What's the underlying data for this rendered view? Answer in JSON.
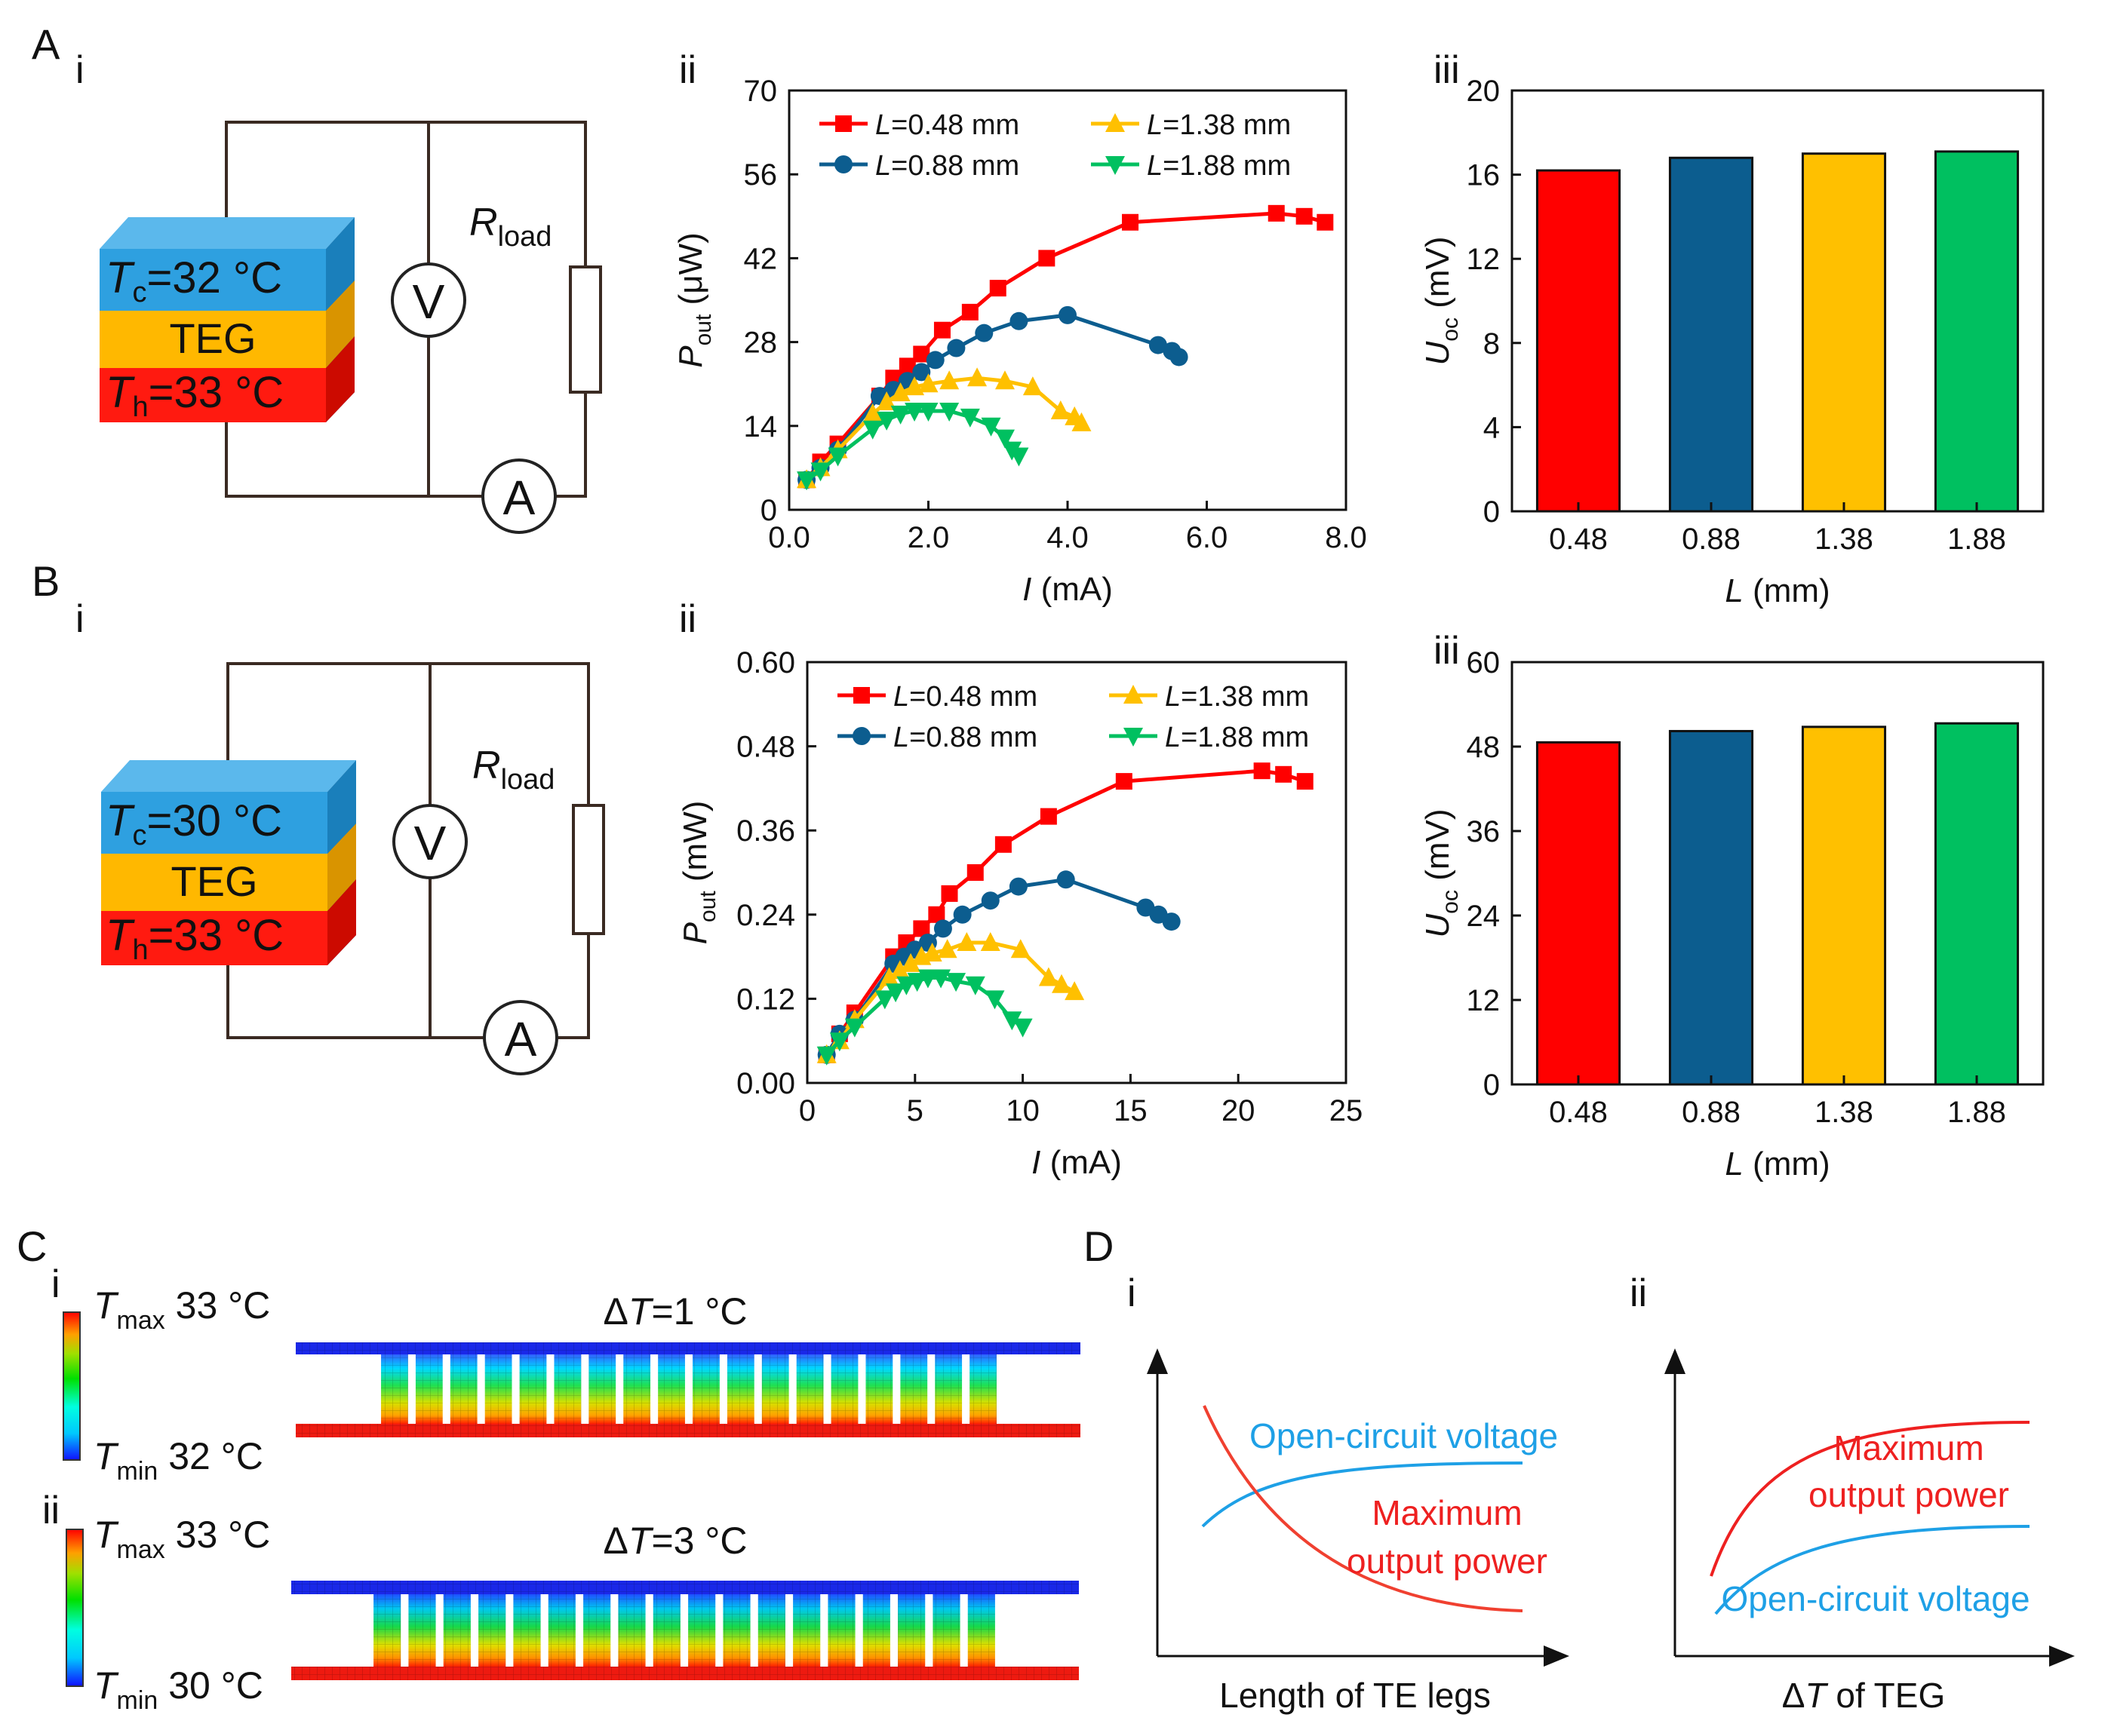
{
  "panel_labels": {
    "A": "A",
    "B": "B",
    "C": "C",
    "D": "D",
    "i": "i",
    "ii": "ii",
    "iii": "iii"
  },
  "panel_A": {
    "circuit": {
      "tc_sym": "T",
      "tc_sub": "c",
      "tc_val": "=32 °C",
      "teg": "TEG",
      "th_sym": "T",
      "th_sub": "h",
      "th_val": "=33 °C",
      "r_sym": "R",
      "r_sub": "load",
      "voltmeter": "V",
      "ammeter": "A"
    }
  },
  "panel_B": {
    "circuit": {
      "tc_sym": "T",
      "tc_sub": "c",
      "tc_val": "=30 °C",
      "teg": "TEG",
      "th_sym": "T",
      "th_sub": "h",
      "th_val": "=33 °C",
      "r_sym": "R",
      "r_sub": "load",
      "voltmeter": "V",
      "ammeter": "A"
    }
  },
  "colors": {
    "red": "#ff0000",
    "blue": "#0c5d8f",
    "yellow": "#ffc000",
    "green": "#00c060",
    "wire": "#3a2a22",
    "cold": "#2ea0e0",
    "teg": "#ffb800",
    "hot": "#ff1a10"
  },
  "chart_data": [
    {
      "id": "A-ii",
      "type": "line",
      "xlabel_sym": "I",
      "xlabel_unit": " (mA)",
      "ylabel_sym": "P",
      "ylabel_sub": "out",
      "ylabel_unit": " (μW)",
      "xlim": [
        0,
        8
      ],
      "ylim": [
        0,
        70
      ],
      "xticks": [
        "0.0",
        "2.0",
        "4.0",
        "6.0",
        "8.0"
      ],
      "xtick_values": [
        0,
        2,
        4,
        6,
        8
      ],
      "yticks": [
        "0",
        "14",
        "28",
        "42",
        "56",
        "70"
      ],
      "ytick_values": [
        0,
        14,
        28,
        42,
        56,
        70
      ],
      "legend": {
        "position": "top-left",
        "prefix": "L",
        "names": [
          "=0.48 mm",
          "=0.88 mm",
          "=1.38 mm",
          "=1.88 mm"
        ]
      },
      "series": [
        {
          "name": "L=0.48 mm",
          "marker": "square",
          "x": [
            0.25,
            0.45,
            0.7,
            1.3,
            1.5,
            1.7,
            1.9,
            2.2,
            2.6,
            3.0,
            3.7,
            4.9,
            7.0,
            7.4,
            7.7
          ],
          "y": [
            5,
            8,
            11,
            19,
            22,
            24,
            26,
            30,
            33,
            37,
            42,
            48,
            49.5,
            49,
            48
          ]
        },
        {
          "name": "L=0.88 mm",
          "marker": "circle",
          "x": [
            0.25,
            0.45,
            0.7,
            1.3,
            1.5,
            1.7,
            1.9,
            2.1,
            2.4,
            2.8,
            3.3,
            4.0,
            5.3,
            5.5,
            5.6
          ],
          "y": [
            5,
            7,
            10,
            19,
            20,
            21.5,
            23,
            25,
            27,
            29.5,
            31.5,
            32.5,
            27.5,
            26.5,
            25.5
          ]
        },
        {
          "name": "L=1.38 mm",
          "marker": "triangle-up",
          "x": [
            0.25,
            0.45,
            0.7,
            1.2,
            1.4,
            1.6,
            1.8,
            2.0,
            2.3,
            2.7,
            3.1,
            3.5,
            3.9,
            4.1,
            4.2
          ],
          "y": [
            5,
            7,
            10,
            16,
            18,
            19.5,
            20.5,
            21,
            21.5,
            22,
            21.5,
            20.5,
            16.5,
            15.5,
            14.5
          ]
        },
        {
          "name": "L=1.88 mm",
          "marker": "triangle-down",
          "x": [
            0.25,
            0.45,
            0.7,
            1.2,
            1.4,
            1.6,
            1.8,
            2.0,
            2.3,
            2.6,
            2.9,
            3.1,
            3.2,
            3.3
          ],
          "y": [
            5,
            6.5,
            9,
            13.5,
            15,
            16,
            16.5,
            16.5,
            16.5,
            15.5,
            14,
            12,
            10,
            9
          ]
        }
      ]
    },
    {
      "id": "A-iii",
      "type": "bar",
      "xlabel_sym": "L",
      "xlabel_unit": " (mm)",
      "ylabel_sym": "U",
      "ylabel_sub": "oc",
      "ylabel_unit": " (mV)",
      "categories": [
        "0.48",
        "0.88",
        "1.38",
        "1.88"
      ],
      "values": [
        16.2,
        16.8,
        17.0,
        17.1
      ],
      "ylim": [
        0,
        20
      ],
      "yticks": [
        "0",
        "4",
        "8",
        "12",
        "16",
        "20"
      ],
      "ytick_values": [
        0,
        4,
        8,
        12,
        16,
        20
      ]
    },
    {
      "id": "B-ii",
      "type": "line",
      "xlabel_sym": "I",
      "xlabel_unit": " (mA)",
      "ylabel_sym": "P",
      "ylabel_sub": "out",
      "ylabel_unit": " (mW)",
      "xlim": [
        0,
        25
      ],
      "ylim": [
        0,
        0.6
      ],
      "xticks": [
        "0",
        "5",
        "10",
        "15",
        "20",
        "25"
      ],
      "xtick_values": [
        0,
        5,
        10,
        15,
        20,
        25
      ],
      "yticks": [
        "0.00",
        "0.12",
        "0.24",
        "0.36",
        "0.48",
        "0.60"
      ],
      "ytick_values": [
        0,
        0.12,
        0.24,
        0.36,
        0.48,
        0.6
      ],
      "legend": {
        "position": "top-left",
        "prefix": "L",
        "names": [
          "=0.48 mm",
          "=0.88 mm",
          "=1.38 mm",
          "=1.88 mm"
        ]
      },
      "series": [
        {
          "name": "L=0.48 mm",
          "marker": "square",
          "x": [
            0.9,
            1.5,
            2.2,
            4.0,
            4.6,
            5.3,
            6.0,
            6.6,
            7.8,
            9.1,
            11.2,
            14.7,
            21.1,
            22.1,
            23.1
          ],
          "y": [
            0.04,
            0.07,
            0.1,
            0.18,
            0.2,
            0.22,
            0.24,
            0.27,
            0.3,
            0.34,
            0.38,
            0.43,
            0.445,
            0.44,
            0.43
          ]
        },
        {
          "name": "L=0.88 mm",
          "marker": "circle",
          "x": [
            0.9,
            1.5,
            2.2,
            4.0,
            4.5,
            5.0,
            5.6,
            6.3,
            7.2,
            8.5,
            9.8,
            12.0,
            15.7,
            16.3,
            16.9
          ],
          "y": [
            0.04,
            0.07,
            0.09,
            0.17,
            0.18,
            0.19,
            0.2,
            0.22,
            0.24,
            0.26,
            0.28,
            0.29,
            0.25,
            0.24,
            0.23
          ]
        },
        {
          "name": "L=1.38 mm",
          "marker": "triangle-up",
          "x": [
            0.9,
            1.5,
            2.2,
            3.8,
            4.3,
            4.8,
            5.3,
            5.8,
            6.5,
            7.4,
            8.5,
            9.9,
            11.2,
            11.8,
            12.4
          ],
          "y": [
            0.04,
            0.06,
            0.09,
            0.15,
            0.16,
            0.17,
            0.18,
            0.185,
            0.19,
            0.2,
            0.2,
            0.19,
            0.15,
            0.14,
            0.13
          ]
        },
        {
          "name": "L=1.88 mm",
          "marker": "triangle-down",
          "x": [
            0.9,
            1.5,
            2.2,
            3.6,
            4.1,
            4.6,
            5.1,
            5.6,
            6.2,
            6.9,
            7.8,
            8.7,
            9.5,
            10.0
          ],
          "y": [
            0.04,
            0.06,
            0.08,
            0.12,
            0.13,
            0.14,
            0.145,
            0.15,
            0.15,
            0.145,
            0.14,
            0.12,
            0.09,
            0.08
          ]
        }
      ]
    },
    {
      "id": "B-iii",
      "type": "bar",
      "xlabel_sym": "L",
      "xlabel_unit": " (mm)",
      "ylabel_sym": "U",
      "ylabel_sub": "oc",
      "ylabel_unit": " (mV)",
      "categories": [
        "0.48",
        "0.88",
        "1.38",
        "1.88"
      ],
      "values": [
        48.6,
        50.2,
        50.8,
        51.3
      ],
      "ylim": [
        0,
        60
      ],
      "yticks": [
        "0",
        "12",
        "24",
        "36",
        "48",
        "60"
      ],
      "ytick_values": [
        0,
        12,
        24,
        36,
        48,
        60
      ]
    }
  ],
  "panel_C": {
    "i": {
      "tmax_sym": "T",
      "tmax_sub": "max",
      "tmax_val": " 33 °C",
      "tmin_sym": "T",
      "tmin_sub": "min",
      "tmin_val": " 32 °C",
      "title_pre": "Δ",
      "title_sym": "T",
      "title_val": "=1 °C"
    },
    "ii": {
      "tmax_sym": "T",
      "tmax_sub": "max",
      "tmax_val": " 33 °C",
      "tmin_sym": "T",
      "tmin_sub": "min",
      "tmin_val": " 30 °C",
      "title_pre": "Δ",
      "title_sym": "T",
      "title_val": "=3 °C"
    }
  },
  "panel_D": {
    "i": {
      "xlabel": "Length of TE legs",
      "curve_voltage": "Open-circuit voltage",
      "curve_power_1": "Maximum",
      "curve_power_2": "output power"
    },
    "ii": {
      "xlabel_pre": "Δ",
      "xlabel_sym": "T",
      "xlabel_rest": " of TEG",
      "curve_voltage": "Open-circuit voltage",
      "curve_power_1": "Maximum",
      "curve_power_2": "output power"
    }
  }
}
